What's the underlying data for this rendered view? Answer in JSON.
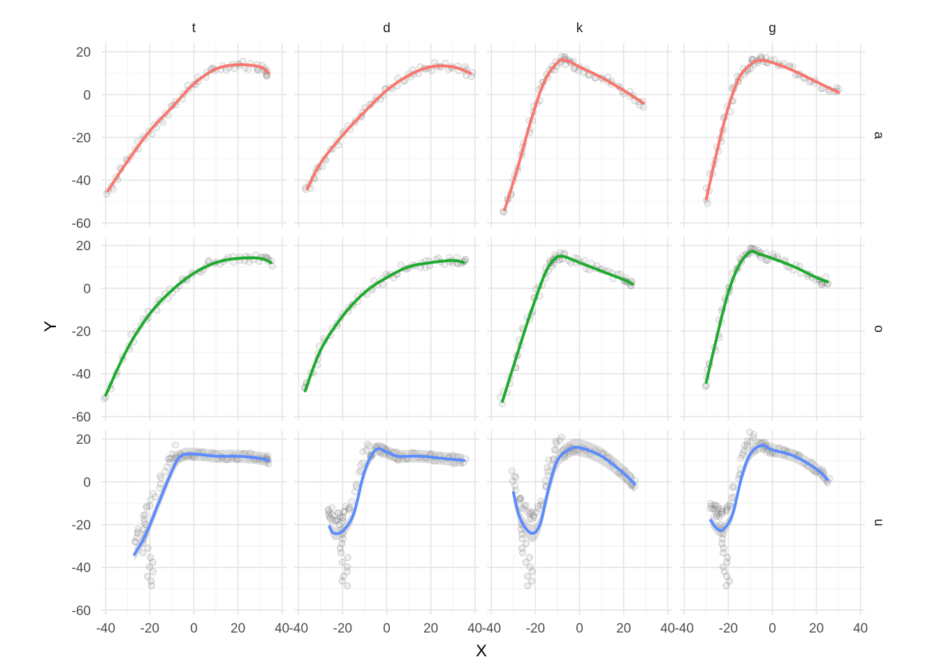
{
  "chart_data": {
    "type": "scatter",
    "xlabel": "X",
    "ylabel": "Y",
    "xlim": [
      -42,
      42
    ],
    "ylim": [
      -62,
      24
    ],
    "x_ticks": [
      -40,
      -20,
      0,
      20,
      40
    ],
    "x_tick_labels": [
      "-40",
      "-20",
      "0",
      "20",
      "40"
    ],
    "y_ticks": [
      -60,
      -40,
      -20,
      0,
      20
    ],
    "y_tick_labels": [
      "-60",
      "-40",
      "-20",
      "0",
      "20"
    ],
    "columns": [
      "t",
      "d",
      "k",
      "g"
    ],
    "rows": [
      "a",
      "o",
      "u"
    ],
    "grid": true,
    "legend": "none",
    "row_colors": [
      "#F8766D",
      "#1EAA2E",
      "#5A8CFF"
    ],
    "point_color": "#555555",
    "panels": [
      {
        "row": "a",
        "col": "t",
        "smooth": [
          [
            -39,
            -45
          ],
          [
            -30,
            -31
          ],
          [
            -20,
            -17
          ],
          [
            -10,
            -6
          ],
          [
            0,
            5
          ],
          [
            10,
            12
          ],
          [
            20,
            14
          ],
          [
            30,
            13
          ],
          [
            34,
            10
          ]
        ]
      },
      {
        "row": "a",
        "col": "d",
        "smooth": [
          [
            -36,
            -44
          ],
          [
            -30,
            -32
          ],
          [
            -20,
            -19
          ],
          [
            -10,
            -8
          ],
          [
            0,
            2
          ],
          [
            10,
            9
          ],
          [
            20,
            13
          ],
          [
            30,
            13
          ],
          [
            38,
            10
          ]
        ]
      },
      {
        "row": "a",
        "col": "k",
        "smooth": [
          [
            -34,
            -54
          ],
          [
            -28,
            -34
          ],
          [
            -22,
            -12
          ],
          [
            -16,
            6
          ],
          [
            -10,
            15
          ],
          [
            -6,
            16
          ],
          [
            0,
            13
          ],
          [
            10,
            8
          ],
          [
            20,
            2
          ],
          [
            29,
            -4
          ]
        ]
      },
      {
        "row": "a",
        "col": "g",
        "smooth": [
          [
            -30,
            -49
          ],
          [
            -25,
            -26
          ],
          [
            -20,
            -6
          ],
          [
            -15,
            8
          ],
          [
            -10,
            14
          ],
          [
            -6,
            16
          ],
          [
            0,
            15
          ],
          [
            10,
            11
          ],
          [
            20,
            6
          ],
          [
            30,
            1
          ]
        ]
      },
      {
        "row": "o",
        "col": "t",
        "smooth": [
          [
            -40,
            -50
          ],
          [
            -30,
            -28
          ],
          [
            -20,
            -12
          ],
          [
            -10,
            -1
          ],
          [
            0,
            7
          ],
          [
            10,
            12
          ],
          [
            20,
            14
          ],
          [
            30,
            14
          ],
          [
            35,
            12
          ]
        ]
      },
      {
        "row": "o",
        "col": "d",
        "smooth": [
          [
            -37,
            -48
          ],
          [
            -30,
            -29
          ],
          [
            -20,
            -13
          ],
          [
            -10,
            -2
          ],
          [
            0,
            5
          ],
          [
            10,
            10
          ],
          [
            20,
            12
          ],
          [
            30,
            13
          ],
          [
            35,
            12
          ]
        ]
      },
      {
        "row": "o",
        "col": "k",
        "smooth": [
          [
            -35,
            -53
          ],
          [
            -28,
            -30
          ],
          [
            -22,
            -11
          ],
          [
            -16,
            6
          ],
          [
            -12,
            13
          ],
          [
            -8,
            15
          ],
          [
            0,
            12
          ],
          [
            10,
            8
          ],
          [
            20,
            4
          ],
          [
            24,
            2
          ]
        ]
      },
      {
        "row": "o",
        "col": "g",
        "smooth": [
          [
            -30,
            -44
          ],
          [
            -25,
            -22
          ],
          [
            -20,
            -2
          ],
          [
            -15,
            11
          ],
          [
            -10,
            17
          ],
          [
            -6,
            16
          ],
          [
            0,
            14
          ],
          [
            10,
            10
          ],
          [
            20,
            5
          ],
          [
            25,
            3
          ]
        ]
      },
      {
        "row": "u",
        "col": "t",
        "smooth": [
          [
            -27,
            -34
          ],
          [
            -22,
            -25
          ],
          [
            -16,
            -10
          ],
          [
            -10,
            5
          ],
          [
            -6,
            12
          ],
          [
            0,
            13
          ],
          [
            10,
            12
          ],
          [
            20,
            12
          ],
          [
            30,
            11
          ],
          [
            34,
            10
          ]
        ],
        "band": 3
      },
      {
        "row": "u",
        "col": "d",
        "smooth": [
          [
            -26,
            -21
          ],
          [
            -24,
            -24
          ],
          [
            -20,
            -23
          ],
          [
            -15,
            -15
          ],
          [
            -10,
            5
          ],
          [
            -5,
            15
          ],
          [
            0,
            14
          ],
          [
            5,
            12
          ],
          [
            15,
            12
          ],
          [
            25,
            11
          ],
          [
            35,
            10
          ]
        ],
        "band": 3
      },
      {
        "row": "u",
        "col": "k",
        "smooth": [
          [
            -30,
            -5
          ],
          [
            -27,
            -17
          ],
          [
            -22,
            -24
          ],
          [
            -18,
            -20
          ],
          [
            -14,
            -3
          ],
          [
            -10,
            10
          ],
          [
            -5,
            15
          ],
          [
            0,
            16
          ],
          [
            10,
            12
          ],
          [
            20,
            4
          ],
          [
            25,
            -1
          ]
        ],
        "band": 4
      },
      {
        "row": "u",
        "col": "g",
        "smooth": [
          [
            -28,
            -18
          ],
          [
            -25,
            -22
          ],
          [
            -22,
            -22
          ],
          [
            -18,
            -15
          ],
          [
            -14,
            2
          ],
          [
            -10,
            13
          ],
          [
            -5,
            17
          ],
          [
            0,
            15
          ],
          [
            10,
            12
          ],
          [
            20,
            6
          ],
          [
            25,
            1
          ]
        ],
        "band": 3
      }
    ]
  }
}
